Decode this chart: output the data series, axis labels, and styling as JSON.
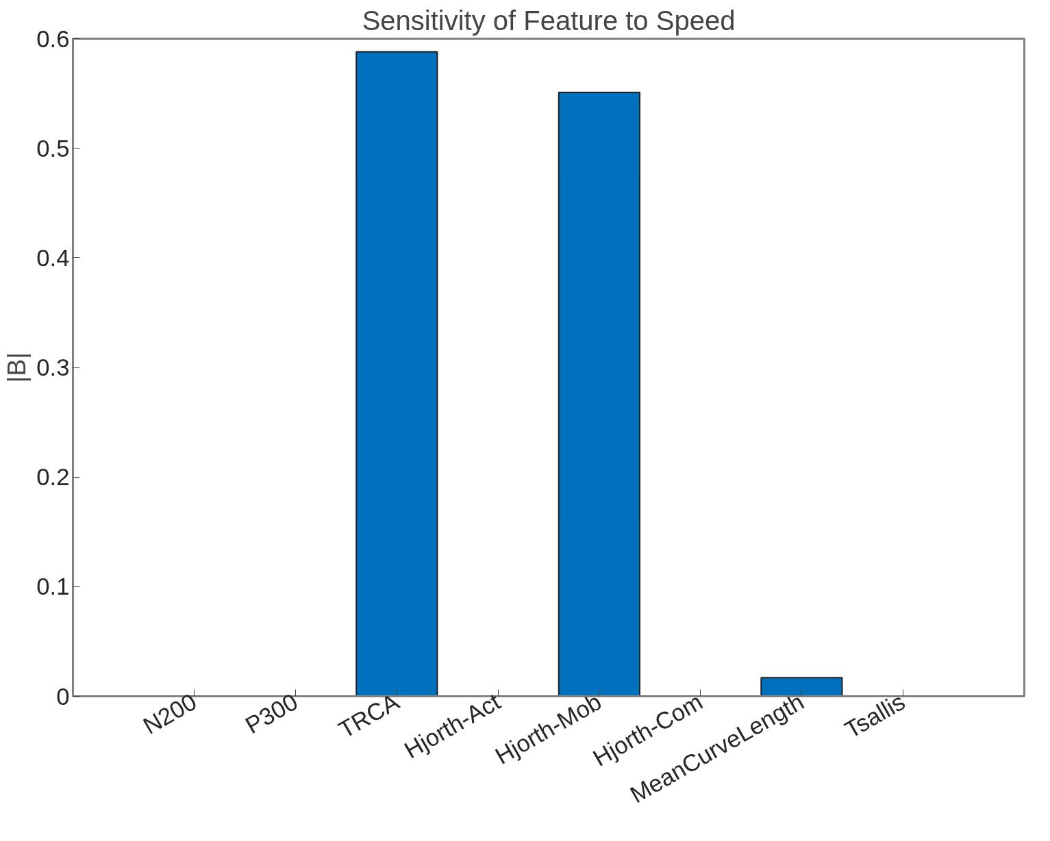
{
  "chart_data": {
    "type": "bar",
    "title": "Sensitivity of Feature to Speed",
    "ylabel": "|B|",
    "categories": [
      "N200",
      "P300",
      "TRCA",
      "Hjorth-Act",
      "Hjorth-Mob",
      "Hjorth-Com",
      "MeanCurveLength",
      "Tsallis"
    ],
    "values": [
      0,
      0,
      0.588,
      0,
      0.551,
      0,
      0.017,
      0
    ],
    "color": "#0072bd",
    "ylim": [
      0,
      0.6
    ],
    "yticks": [
      0,
      0.1,
      0.2,
      0.3,
      0.4,
      0.5,
      0.6
    ],
    "grid": false
  }
}
